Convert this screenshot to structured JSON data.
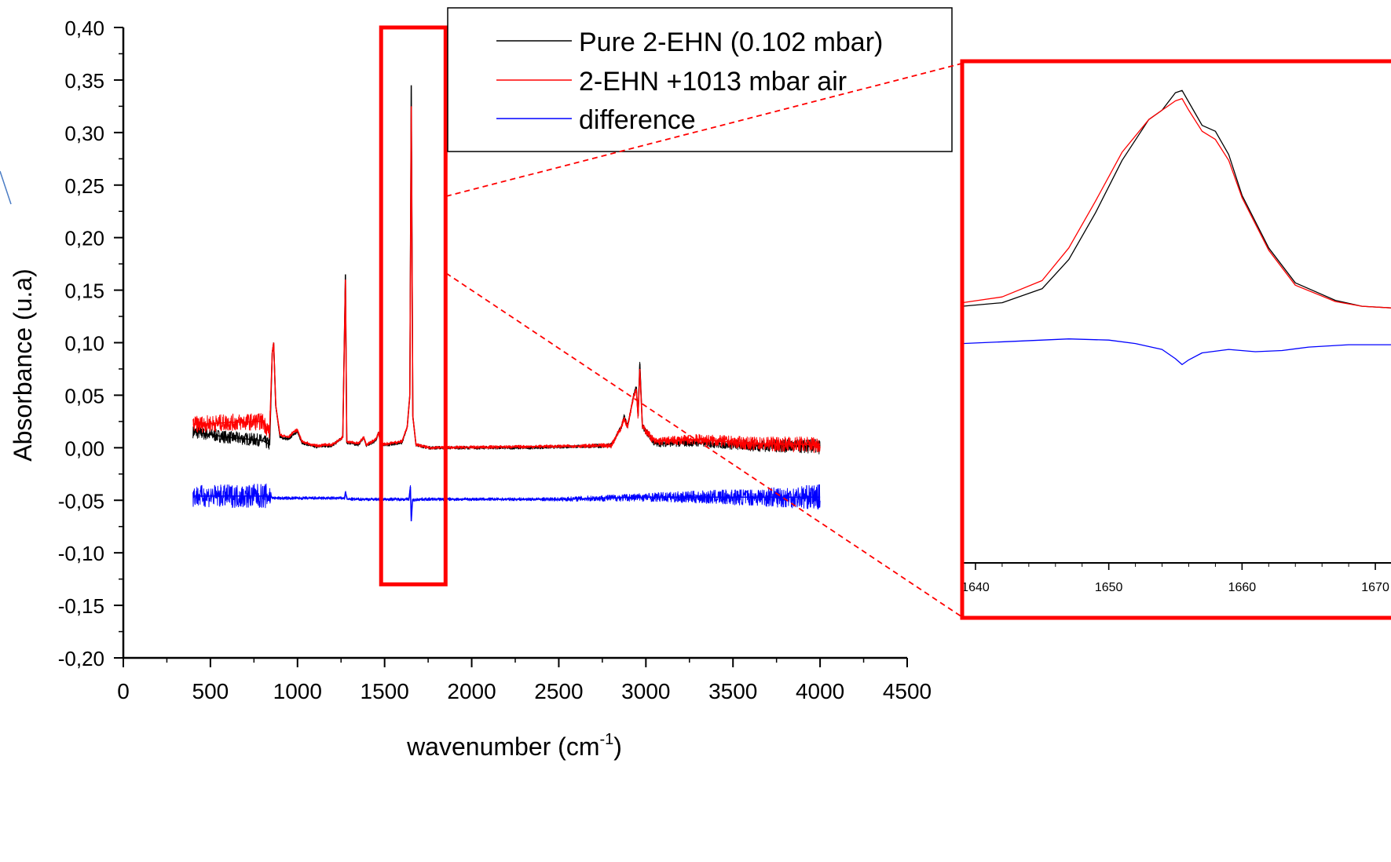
{
  "chart_data": [
    {
      "type": "line",
      "title": "",
      "xlabel": "wavenumber (cm",
      "xlabel_sup": "-1",
      "xlabel_close": ")",
      "ylabel": "Absorbance (u.a)",
      "xlim": [
        0,
        4500
      ],
      "ylim": [
        -0.2,
        0.4
      ],
      "x_ticks": [
        0,
        500,
        1000,
        1500,
        2000,
        2500,
        3000,
        3500,
        4000,
        4500
      ],
      "x_tick_labels": [
        "0",
        "500",
        "1000",
        "1500",
        "2000",
        "2500",
        "3000",
        "3500",
        "4000",
        "4500"
      ],
      "y_ticks": [
        0.4,
        0.35,
        0.3,
        0.25,
        0.2,
        0.15,
        0.1,
        0.05,
        0.0,
        -0.05,
        -0.1,
        -0.15,
        -0.2
      ],
      "y_tick_labels": [
        "0,40",
        "0,35",
        "0,30",
        "0,25",
        "0,20",
        "0,15",
        "0,10",
        "0,05",
        "0,00",
        "-0,05",
        "-0,10",
        "-0,15",
        "-0,20"
      ],
      "grid": false,
      "legend_position": "top-right",
      "series": [
        {
          "name": "Pure 2-EHN (0.102 mbar)",
          "color": "#000000",
          "noise": [
            [
              400,
              0.006
            ],
            [
              845,
              0.006
            ],
            [
              850,
              0.0015
            ],
            [
              2600,
              0.0015
            ],
            [
              3300,
              0.004
            ],
            [
              4000,
              0.007
            ]
          ],
          "points": [
            [
              400,
              0.015
            ],
            [
              600,
              0.01
            ],
            [
              800,
              0.007
            ],
            [
              840,
              0.003
            ],
            [
              855,
              0.09
            ],
            [
              863,
              0.1
            ],
            [
              875,
              0.04
            ],
            [
              900,
              0.01
            ],
            [
              950,
              0.008
            ],
            [
              975,
              0.013
            ],
            [
              1000,
              0.015
            ],
            [
              1025,
              0.005
            ],
            [
              1100,
              0.001
            ],
            [
              1200,
              0.002
            ],
            [
              1260,
              0.01
            ],
            [
              1275,
              0.165
            ],
            [
              1283,
              0.005
            ],
            [
              1350,
              0.003
            ],
            [
              1380,
              0.01
            ],
            [
              1395,
              0.002
            ],
            [
              1450,
              0.007
            ],
            [
              1465,
              0.015
            ],
            [
              1480,
              0.002
            ],
            [
              1600,
              0.005
            ],
            [
              1630,
              0.02
            ],
            [
              1645,
              0.05
            ],
            [
              1653,
              0.345
            ],
            [
              1662,
              0.03
            ],
            [
              1680,
              0.003
            ],
            [
              1750,
              0.0
            ],
            [
              2300,
              0.0
            ],
            [
              2800,
              0.002
            ],
            [
              2860,
              0.02
            ],
            [
              2875,
              0.03
            ],
            [
              2895,
              0.02
            ],
            [
              2930,
              0.05
            ],
            [
              2945,
              0.058
            ],
            [
              2955,
              0.03
            ],
            [
              2965,
              0.08
            ],
            [
              2980,
              0.02
            ],
            [
              3050,
              0.004
            ],
            [
              3300,
              0.005
            ],
            [
              3600,
              0.002
            ],
            [
              4000,
              0.001
            ]
          ]
        },
        {
          "name": "2-EHN +1013 mbar air",
          "color": "#ff0000",
          "noise": [
            [
              400,
              0.008
            ],
            [
              845,
              0.008
            ],
            [
              850,
              0.0015
            ],
            [
              2600,
              0.0015
            ],
            [
              3300,
              0.005
            ],
            [
              4000,
              0.008
            ]
          ],
          "points": [
            [
              400,
              0.022
            ],
            [
              600,
              0.024
            ],
            [
              800,
              0.025
            ],
            [
              840,
              0.015
            ],
            [
              855,
              0.09
            ],
            [
              863,
              0.1
            ],
            [
              875,
              0.04
            ],
            [
              900,
              0.012
            ],
            [
              950,
              0.01
            ],
            [
              975,
              0.015
            ],
            [
              1000,
              0.017
            ],
            [
              1025,
              0.006
            ],
            [
              1100,
              0.002
            ],
            [
              1200,
              0.003
            ],
            [
              1260,
              0.01
            ],
            [
              1275,
              0.16
            ],
            [
              1283,
              0.006
            ],
            [
              1350,
              0.004
            ],
            [
              1380,
              0.01
            ],
            [
              1395,
              0.003
            ],
            [
              1450,
              0.008
            ],
            [
              1465,
              0.014
            ],
            [
              1480,
              0.003
            ],
            [
              1600,
              0.006
            ],
            [
              1630,
              0.02
            ],
            [
              1645,
              0.05
            ],
            [
              1653,
              0.325
            ],
            [
              1662,
              0.03
            ],
            [
              1680,
              0.003
            ],
            [
              1750,
              0.0
            ],
            [
              2300,
              0.001
            ],
            [
              2800,
              0.002
            ],
            [
              2860,
              0.02
            ],
            [
              2875,
              0.028
            ],
            [
              2895,
              0.02
            ],
            [
              2930,
              0.05
            ],
            [
              2945,
              0.056
            ],
            [
              2955,
              0.03
            ],
            [
              2965,
              0.075
            ],
            [
              2980,
              0.02
            ],
            [
              3050,
              0.006
            ],
            [
              3300,
              0.008
            ],
            [
              3600,
              0.004
            ],
            [
              4000,
              0.003
            ]
          ]
        },
        {
          "name": "difference",
          "color": "#0000ff",
          "noise": [
            [
              400,
              0.01
            ],
            [
              845,
              0.012
            ],
            [
              850,
              0.0015
            ],
            [
              2400,
              0.0015
            ],
            [
              3000,
              0.004
            ],
            [
              3600,
              0.008
            ],
            [
              4000,
              0.012
            ]
          ],
          "points": [
            [
              400,
              -0.046
            ],
            [
              845,
              -0.046
            ],
            [
              860,
              -0.048
            ],
            [
              1270,
              -0.048
            ],
            [
              1275,
              -0.042
            ],
            [
              1285,
              -0.049
            ],
            [
              1640,
              -0.049
            ],
            [
              1648,
              -0.037
            ],
            [
              1653,
              -0.07
            ],
            [
              1660,
              -0.05
            ],
            [
              1700,
              -0.049
            ],
            [
              2500,
              -0.049
            ],
            [
              3000,
              -0.047
            ],
            [
              4000,
              -0.047
            ]
          ]
        }
      ],
      "annotations": {
        "zoom_box_x": [
          1480,
          1850
        ],
        "zoom_box_y": [
          -0.13,
          0.4
        ]
      }
    },
    {
      "type": "line",
      "title": "",
      "xlim": [
        1639,
        1672
      ],
      "x_ticks": [
        1640,
        1650,
        1660,
        1670
      ],
      "x_tick_labels": [
        "1640",
        "1650",
        "1660",
        "1670"
      ],
      "ylim": [
        -0.07,
        0.36
      ],
      "series": [
        {
          "name": "",
          "color": "#000000",
          "points": [
            [
              1639,
              0.15
            ],
            [
              1642,
              0.153
            ],
            [
              1645,
              0.165
            ],
            [
              1647,
              0.19
            ],
            [
              1649,
              0.23
            ],
            [
              1651,
              0.275
            ],
            [
              1653,
              0.31
            ],
            [
              1654,
              0.318
            ],
            [
              1655,
              0.333
            ],
            [
              1655.5,
              0.335
            ],
            [
              1656,
              0.325
            ],
            [
              1657,
              0.305
            ],
            [
              1658,
              0.3
            ],
            [
              1659,
              0.28
            ],
            [
              1660,
              0.245
            ],
            [
              1662,
              0.2
            ],
            [
              1664,
              0.17
            ],
            [
              1667,
              0.155
            ],
            [
              1669,
              0.15
            ],
            [
              1672,
              0.148
            ]
          ]
        },
        {
          "name": "",
          "color": "#ff0000",
          "points": [
            [
              1639,
              0.153
            ],
            [
              1642,
              0.158
            ],
            [
              1645,
              0.172
            ],
            [
              1647,
              0.2
            ],
            [
              1649,
              0.24
            ],
            [
              1651,
              0.282
            ],
            [
              1653,
              0.31
            ],
            [
              1654,
              0.318
            ],
            [
              1655,
              0.326
            ],
            [
              1655.5,
              0.328
            ],
            [
              1656,
              0.318
            ],
            [
              1657,
              0.3
            ],
            [
              1658,
              0.293
            ],
            [
              1659,
              0.275
            ],
            [
              1660,
              0.243
            ],
            [
              1662,
              0.198
            ],
            [
              1664,
              0.168
            ],
            [
              1667,
              0.154
            ],
            [
              1669,
              0.15
            ],
            [
              1672,
              0.148
            ]
          ]
        },
        {
          "name": "",
          "color": "#0000ff",
          "points": [
            [
              1639,
              0.118
            ],
            [
              1643,
              0.12
            ],
            [
              1647,
              0.122
            ],
            [
              1650,
              0.121
            ],
            [
              1652,
              0.118
            ],
            [
              1654,
              0.113
            ],
            [
              1655,
              0.105
            ],
            [
              1655.5,
              0.1
            ],
            [
              1656,
              0.104
            ],
            [
              1657,
              0.11
            ],
            [
              1659,
              0.113
            ],
            [
              1661,
              0.111
            ],
            [
              1663,
              0.112
            ],
            [
              1665,
              0.115
            ],
            [
              1668,
              0.117
            ],
            [
              1672,
              0.117
            ]
          ]
        }
      ]
    }
  ]
}
